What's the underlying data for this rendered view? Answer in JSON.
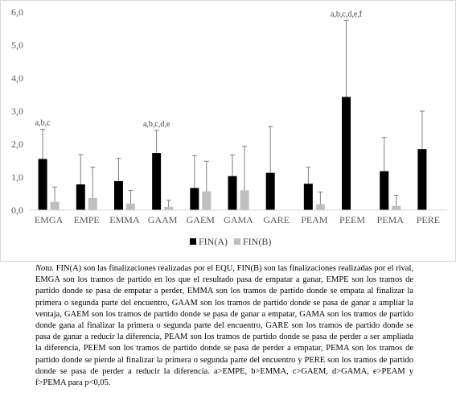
{
  "chart_data": {
    "type": "bar",
    "categories": [
      "EMGA",
      "EMPE",
      "EMMA",
      "GAAM",
      "GAEM",
      "GAMA",
      "GARE",
      "PEAM",
      "PEEM",
      "PEMA",
      "PERE"
    ],
    "series": [
      {
        "name": "FIN(A)",
        "color": "#000000",
        "values": [
          1.55,
          0.78,
          0.88,
          1.73,
          0.67,
          1.03,
          1.13,
          0.8,
          3.43,
          1.18,
          1.85
        ],
        "error_upper": [
          2.45,
          1.68,
          1.57,
          2.42,
          1.65,
          1.67,
          2.53,
          1.3,
          5.75,
          2.2,
          3.0
        ]
      },
      {
        "name": "FIN(B)",
        "color": "#bfbfbf",
        "values": [
          0.25,
          0.37,
          0.2,
          0.1,
          0.57,
          0.6,
          0.0,
          0.18,
          0.0,
          0.13,
          0.0
        ],
        "error_upper": [
          0.7,
          1.3,
          0.6,
          0.3,
          1.48,
          1.93,
          0.0,
          0.55,
          0.0,
          0.45,
          0.0
        ]
      }
    ],
    "ylim": [
      0,
      6
    ],
    "yticks": [
      "0,0",
      "1,0",
      "2,0",
      "3,0",
      "4,0",
      "5,0",
      "6,0"
    ],
    "annotations": [
      {
        "category": "EMGA",
        "text": "a,b,c"
      },
      {
        "category": "GAAM",
        "text": "a,b,c,d,e"
      },
      {
        "category": "PEEM",
        "text": "a,b,c,d,e,f"
      }
    ],
    "legend_position": "bottom",
    "grid": false
  },
  "note": {
    "label": "Nota.",
    "text": " FIN(A) son las finalizaciones realizadas por el EQU, FIN(B) son las finalizaciones realizadas por el rival, EMGA son los tramos de partido en los que el resultado pasa de empatar a ganar, EMPE son los tramos de partido donde se pasa de empatar a perder, EMMA son los tramos de partido donde se empata al finalizar la primera o segunda parte del encuentro, GAAM son los tramos de partido donde se pasa de ganar a ampliar la ventaja, GAEM son los tramos de partido donde se pasa de ganar a empatar, GAMA son los tramos de partido donde gana al finalizar la primera o segunda parte del encuentro, GARE son los tramos de partido donde se pasa de ganar a reducir la diferencia, PEAM son los tramos de partido donde se pasa de perder a ser ampliada la diferencia, PEEM son los tramos de partido donde se pasa de perder a empatar, PEMA son los tramos de partido donde se pierde al finalizar la primera o segunda parte del encuentro y PERE son los tramos de partido donde se pasa de perder a reducir la diferencia. a>EMPE, b>EMMA, c>GAEM, d>GAMA, e>PEAM y f>PEMA para p<0,05."
  }
}
